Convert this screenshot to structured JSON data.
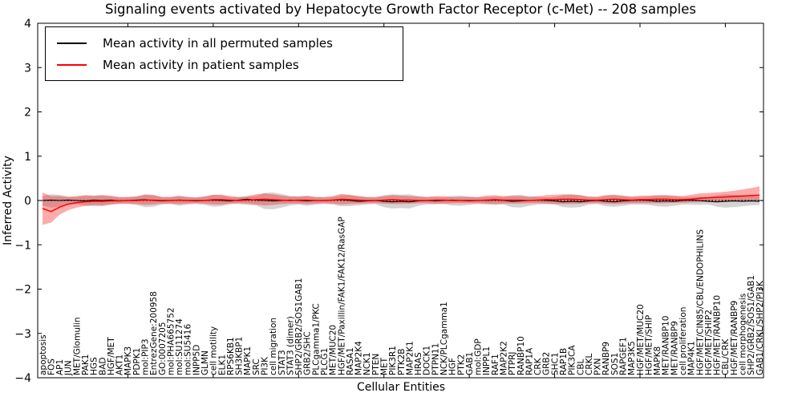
{
  "chart_data": {
    "type": "line",
    "title": "Signaling events activated by Hepatocyte Growth Factor Receptor (c-Met) -- 208 samples",
    "xlabel": "Cellular Entities",
    "ylabel": "Inferred Activity",
    "ylim": [
      -4,
      4
    ],
    "yticks": [
      "4",
      "3",
      "2",
      "1",
      "0",
      "−1",
      "−2",
      "−3",
      "−4"
    ],
    "ytick_values": [
      4,
      3,
      2,
      1,
      0,
      -1,
      -2,
      -3,
      -4
    ],
    "grid": false,
    "legend_position": "upper left",
    "zero_line": {
      "style": "dotted",
      "color": "#000000"
    },
    "categories": [
      "apoptosis",
      "FOS",
      "AP1",
      "JUN",
      "MET/Glomulin",
      "PAK1",
      "HGS",
      "BAD",
      "HGF/MET",
      "AKT1",
      "MAPK3",
      "PDPK1",
      "mol:PIP3",
      "EntrezGene:200958",
      "GO:0007205",
      "mol:PHA665752",
      "mol:SU11274",
      "mol:SU5416",
      "INPP5D",
      "GLMN",
      "cell motility",
      "ELK1",
      "RPS6KB1",
      "SH3KBP1",
      "MAPK1",
      "SRC",
      "PI3K",
      "cell migration",
      "STAT3",
      "STAT3 (dimer)",
      "SHP2/GRB2/SOS1GAB1",
      "GRB2/SHC",
      "PLCgamma1/PKC",
      "PLCG1",
      "MET/MUC20",
      "HGF/MET/Paxillin/FAK1/FAK12/RasGAP",
      "RASA1",
      "MAP2K4",
      "NCK1",
      "PTEN",
      "MET",
      "PIK3R1",
      "PTK2B",
      "MAP2K1",
      "HRAS",
      "DOCK1",
      "PTPN11",
      "NCK/PLCgamma1",
      "HGF",
      "PTK2",
      "GAB1",
      "mol:GDP",
      "INPPL1",
      "RAF1",
      "MAP2K2",
      "PTPRJ",
      "RANBP10",
      "RAP1A",
      "CRK",
      "GRB2",
      "SHC1",
      "RAP1B",
      "PIK3CA",
      "CBL",
      "CRKL",
      "PXN",
      "RANBP9",
      "SOS1",
      "RAPGEF1",
      "MAP3K5",
      "HGF/MET/MUC20",
      "HGF/MET/SHIP",
      "MAPK8",
      "MET/RANBP10",
      "MET/RANBP9",
      "cell proliferation",
      "MAP4K1",
      "HGF/MET/CIN85/CBL/ENDOPHILINS",
      "HGF/MET/SHIP2",
      "HGF/MET/RANBP10",
      "CBL/CRK",
      "HGF/MET/RANBP9",
      "cell morphogenesis",
      "SHP2/GRB2/SOS1/GAB1",
      "GAB1/CRKL/SHP2/PI3K"
    ],
    "series": [
      {
        "name": "Mean activity in all permuted samples",
        "color": "#000000",
        "band_color": "rgba(110,110,110,0.30)",
        "values": [
          0.0,
          0.01,
          0.0,
          0.01,
          0.0,
          -0.01,
          0.01,
          0.0,
          0.01,
          -0.01,
          0.0,
          0.01,
          0.02,
          0.0,
          -0.01,
          0.0,
          0.01,
          0.0,
          -0.01,
          0.0,
          0.01,
          0.0,
          -0.01,
          0.01,
          0.03,
          0.01,
          0.0,
          -0.01,
          0.0,
          0.01,
          0.0,
          -0.01,
          0.0,
          0.0,
          0.01,
          0.02,
          0.0,
          -0.02,
          -0.01,
          0.0,
          -0.02,
          -0.03,
          -0.02,
          -0.03,
          -0.01,
          0.0,
          -0.01,
          0.0,
          0.01,
          0.0,
          -0.01,
          0.0,
          0.0,
          0.01,
          0.0,
          -0.02,
          -0.01,
          0.0,
          0.01,
          0.0,
          -0.01,
          -0.03,
          -0.02,
          -0.03,
          -0.01,
          0.0,
          -0.02,
          -0.03,
          -0.01,
          0.0,
          0.01,
          0.0,
          -0.02,
          -0.01,
          -0.02,
          0.0,
          0.01,
          0.0,
          -0.02,
          -0.03,
          -0.02,
          -0.01,
          -0.02,
          -0.01,
          -0.02
        ],
        "band_upper": [
          0.1,
          0.14,
          0.13,
          0.09,
          0.08,
          0.11,
          0.12,
          0.12,
          0.09,
          0.07,
          0.08,
          0.09,
          0.14,
          0.13,
          0.08,
          0.08,
          0.11,
          0.08,
          0.07,
          0.09,
          0.13,
          0.12,
          0.08,
          0.08,
          0.09,
          0.1,
          0.17,
          0.18,
          0.15,
          0.1,
          0.09,
          0.11,
          0.08,
          0.07,
          0.08,
          0.12,
          0.12,
          0.1,
          0.08,
          0.07,
          0.12,
          0.14,
          0.13,
          0.14,
          0.1,
          0.08,
          0.08,
          0.07,
          0.1,
          0.11,
          0.09,
          0.07,
          0.08,
          0.09,
          0.08,
          0.12,
          0.13,
          0.1,
          0.08,
          0.07,
          0.08,
          0.12,
          0.13,
          0.12,
          0.08,
          0.07,
          0.11,
          0.12,
          0.1,
          0.08,
          0.08,
          0.09,
          0.11,
          0.12,
          0.1,
          0.08,
          0.08,
          0.09,
          0.08,
          0.12,
          0.14,
          0.13,
          0.12,
          0.1,
          0.09
        ],
        "band_lower": [
          -0.12,
          -0.16,
          -0.14,
          -0.1,
          -0.08,
          -0.12,
          -0.13,
          -0.13,
          -0.09,
          -0.08,
          -0.08,
          -0.1,
          -0.15,
          -0.14,
          -0.09,
          -0.08,
          -0.12,
          -0.09,
          -0.08,
          -0.1,
          -0.14,
          -0.13,
          -0.08,
          -0.08,
          -0.1,
          -0.11,
          -0.19,
          -0.2,
          -0.16,
          -0.11,
          -0.09,
          -0.12,
          -0.09,
          -0.08,
          -0.09,
          -0.13,
          -0.13,
          -0.11,
          -0.09,
          -0.08,
          -0.15,
          -0.18,
          -0.17,
          -0.18,
          -0.12,
          -0.09,
          -0.09,
          -0.08,
          -0.11,
          -0.12,
          -0.1,
          -0.08,
          -0.09,
          -0.1,
          -0.09,
          -0.15,
          -0.16,
          -0.12,
          -0.09,
          -0.08,
          -0.09,
          -0.15,
          -0.16,
          -0.15,
          -0.09,
          -0.08,
          -0.13,
          -0.14,
          -0.12,
          -0.09,
          -0.09,
          -0.1,
          -0.13,
          -0.14,
          -0.12,
          -0.09,
          -0.09,
          -0.1,
          -0.09,
          -0.14,
          -0.16,
          -0.15,
          -0.13,
          -0.11,
          -0.1
        ]
      },
      {
        "name": "Mean activity in patient samples",
        "color": "#ff0000",
        "band_color": "rgba(255,0,0,0.33)",
        "values": [
          -0.18,
          -0.25,
          -0.15,
          -0.08,
          -0.05,
          -0.03,
          -0.02,
          -0.02,
          -0.01,
          -0.01,
          0.0,
          0.0,
          0.01,
          0.01,
          0.0,
          0.0,
          0.01,
          0.0,
          0.0,
          0.0,
          0.02,
          0.02,
          0.01,
          0.0,
          0.01,
          0.02,
          0.03,
          0.02,
          0.01,
          0.0,
          0.01,
          0.01,
          0.0,
          0.0,
          0.01,
          0.03,
          0.02,
          0.01,
          0.0,
          0.0,
          0.01,
          0.02,
          0.01,
          0.01,
          0.0,
          0.0,
          0.01,
          0.01,
          0.0,
          0.0,
          0.0,
          0.0,
          0.01,
          0.02,
          0.01,
          0.01,
          0.01,
          0.0,
          0.01,
          0.02,
          0.02,
          0.03,
          0.03,
          0.02,
          0.01,
          0.01,
          0.02,
          0.03,
          0.02,
          0.01,
          0.02,
          0.02,
          0.03,
          0.03,
          0.02,
          0.02,
          0.03,
          0.05,
          0.06,
          0.07,
          0.08,
          0.09,
          0.1,
          0.11,
          0.12
        ],
        "band_upper": [
          0.18,
          0.1,
          0.1,
          0.08,
          0.1,
          0.12,
          0.1,
          0.12,
          0.11,
          0.08,
          0.08,
          0.09,
          0.13,
          0.12,
          0.08,
          0.08,
          0.1,
          0.08,
          0.07,
          0.09,
          0.13,
          0.13,
          0.1,
          0.08,
          0.1,
          0.14,
          0.16,
          0.14,
          0.11,
          0.09,
          0.09,
          0.1,
          0.08,
          0.08,
          0.1,
          0.15,
          0.13,
          0.1,
          0.08,
          0.08,
          0.1,
          0.12,
          0.11,
          0.1,
          0.09,
          0.08,
          0.1,
          0.1,
          0.08,
          0.08,
          0.08,
          0.08,
          0.11,
          0.12,
          0.1,
          0.1,
          0.1,
          0.08,
          0.1,
          0.12,
          0.13,
          0.14,
          0.14,
          0.12,
          0.09,
          0.09,
          0.12,
          0.13,
          0.11,
          0.09,
          0.11,
          0.11,
          0.12,
          0.12,
          0.11,
          0.1,
          0.13,
          0.16,
          0.17,
          0.18,
          0.2,
          0.22,
          0.25,
          0.28,
          0.32
        ],
        "band_lower": [
          -0.55,
          -0.5,
          -0.32,
          -0.22,
          -0.16,
          -0.12,
          -0.1,
          -0.11,
          -0.09,
          -0.07,
          -0.07,
          -0.08,
          -0.1,
          -0.09,
          -0.07,
          -0.07,
          -0.08,
          -0.07,
          -0.06,
          -0.07,
          -0.09,
          -0.09,
          -0.07,
          -0.06,
          -0.07,
          -0.09,
          -0.11,
          -0.1,
          -0.08,
          -0.07,
          -0.07,
          -0.08,
          -0.07,
          -0.06,
          -0.07,
          -0.09,
          -0.08,
          -0.07,
          -0.06,
          -0.06,
          -0.07,
          -0.08,
          -0.08,
          -0.07,
          -0.06,
          -0.06,
          -0.07,
          -0.07,
          -0.06,
          -0.06,
          -0.06,
          -0.06,
          -0.07,
          -0.08,
          -0.07,
          -0.07,
          -0.07,
          -0.06,
          -0.06,
          -0.07,
          -0.08,
          -0.08,
          -0.08,
          -0.07,
          -0.06,
          -0.06,
          -0.07,
          -0.08,
          -0.07,
          -0.06,
          -0.06,
          -0.06,
          -0.06,
          -0.06,
          -0.05,
          -0.05,
          -0.04,
          -0.04,
          -0.03,
          -0.03,
          -0.03,
          -0.02,
          -0.02,
          -0.01,
          0.0
        ]
      }
    ]
  }
}
